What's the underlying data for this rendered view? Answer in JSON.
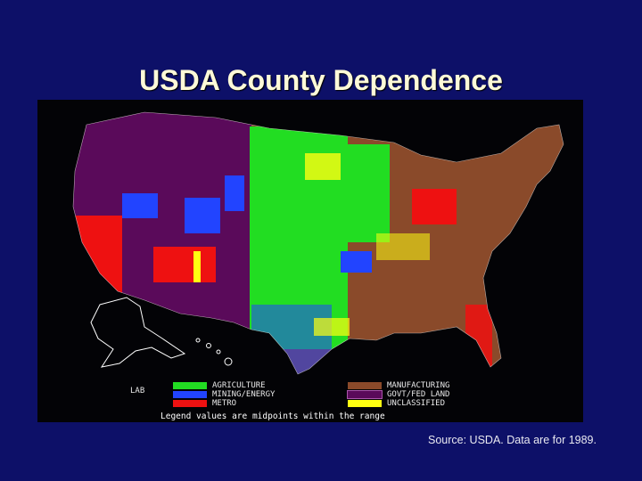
{
  "title": "USDA County Dependence",
  "map": {
    "legend": {
      "label": "LAB",
      "items": [
        {
          "label": "AGRICULTURE",
          "color": "#22dd22"
        },
        {
          "label": "MINING/ENERGY",
          "color": "#2244ff"
        },
        {
          "label": "METRO",
          "color": "#ee1111"
        },
        {
          "label": "MANUFACTURING",
          "color": "#8a4a2a"
        },
        {
          "label": "GOVT/FED LAND",
          "color": "#5a0a5a"
        },
        {
          "label": "UNCLASSIFIED",
          "color": "#ffff11"
        }
      ],
      "note": "Legend values are midpoints within the range"
    }
  },
  "source": "Source: USDA. Data are for 1989."
}
